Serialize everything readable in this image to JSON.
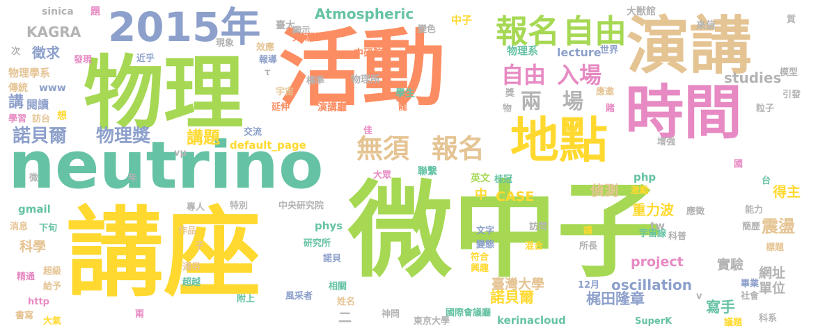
{
  "palette": {
    "green": "#a6d854",
    "orange": "#fc8d62",
    "yellow": "#ffd92f",
    "teal": "#66c2a5",
    "blue": "#8da0cb",
    "pink": "#e78ac3",
    "tan": "#e5c494",
    "gray": "#b3b3b3"
  },
  "words": [
    {
      "text": "微中子",
      "color": "green",
      "size": 150
    },
    {
      "text": "講座",
      "color": "yellow",
      "size": 130
    },
    {
      "text": "活動",
      "color": "orange",
      "size": 120
    },
    {
      "text": "物理",
      "color": "green",
      "size": 115
    },
    {
      "text": "neutrino",
      "color": "teal",
      "size": 100
    },
    {
      "text": "演講",
      "color": "tan",
      "size": 90
    },
    {
      "text": "時間",
      "color": "pink",
      "size": 85
    },
    {
      "text": "地點",
      "color": "yellow",
      "size": 70
    },
    {
      "text": "2015年",
      "color": "blue",
      "size": 60
    },
    {
      "text": "報名",
      "color": "green",
      "size": 48
    },
    {
      "text": "自由",
      "color": "green",
      "size": 48
    },
    {
      "text": "無須",
      "color": "tan",
      "size": 40
    },
    {
      "text": "報名",
      "color": "tan",
      "size": 40
    },
    {
      "text": "自由",
      "color": "pink",
      "size": 34
    },
    {
      "text": "入場",
      "color": "pink",
      "size": 34
    },
    {
      "text": "兩",
      "color": "gray",
      "size": 32
    },
    {
      "text": "場",
      "color": "gray",
      "size": 32
    },
    {
      "text": "諾貝爾",
      "color": "blue",
      "size": 30
    },
    {
      "text": "物理獎",
      "color": "blue",
      "size": 30
    },
    {
      "text": "講題",
      "color": "yellow",
      "size": 26
    },
    {
      "text": "Atmospheric",
      "color": "teal",
      "size": 22
    },
    {
      "text": "KAGRA",
      "color": "gray",
      "size": 22
    },
    {
      "text": "studies",
      "color": "gray",
      "size": 22
    },
    {
      "text": "徵求",
      "color": "blue",
      "size": 20
    },
    {
      "text": "講",
      "color": "blue",
      "size": 22
    },
    {
      "text": "閱讀",
      "color": "blue",
      "size": 16
    },
    {
      "text": "www",
      "color": "blue",
      "size": 14
    },
    {
      "text": "物理學系",
      "color": "tan",
      "size": 16
    },
    {
      "text": "傳統",
      "color": "tan",
      "size": 16
    },
    {
      "text": "學習",
      "color": "pink",
      "size": 14
    },
    {
      "text": "訪台",
      "color": "tan",
      "size": 14
    },
    {
      "text": "想",
      "color": "yellow",
      "size": 14
    },
    {
      "text": "發現",
      "color": "pink",
      "size": 14
    },
    {
      "text": "次",
      "color": "gray",
      "size": 14
    },
    {
      "text": "sinica",
      "color": "gray",
      "size": 14
    },
    {
      "text": "題",
      "color": "pink",
      "size": 14
    },
    {
      "text": "近乎",
      "color": "blue",
      "size": 14
    },
    {
      "text": "現象",
      "color": "gray",
      "size": 14
    },
    {
      "text": "效應",
      "color": "tan",
      "size": 14
    },
    {
      "text": "報導",
      "color": "blue",
      "size": 14
    },
    {
      "text": "τ",
      "color": "gray",
      "size": 14
    },
    {
      "text": "臺大",
      "color": "gray",
      "size": 14
    },
    {
      "text": "顯示",
      "color": "gray",
      "size": 14
    },
    {
      "text": "變色",
      "color": "gray",
      "size": 14
    },
    {
      "text": "中子",
      "color": "yellow",
      "size": 16
    },
    {
      "text": "物理系",
      "color": "teal",
      "size": 16
    },
    {
      "text": "lecture",
      "color": "blue",
      "size": 16
    },
    {
      "text": "世界",
      "color": "blue",
      "size": 14
    },
    {
      "text": "大獣館",
      "color": "gray",
      "size": 14
    },
    {
      "text": "來信",
      "color": "gray",
      "size": 14
    },
    {
      "text": "質",
      "color": "gray",
      "size": 14
    },
    {
      "text": "模型",
      "color": "gray",
      "size": 14
    },
    {
      "text": "引發",
      "color": "gray",
      "size": 14
    },
    {
      "text": "粒子",
      "color": "gray",
      "size": 14
    },
    {
      "text": "應邀",
      "color": "tan",
      "size": 14
    },
    {
      "text": "賭",
      "color": "pink",
      "size": 14
    },
    {
      "text": "貝爾獎",
      "color": "orange",
      "size": 14
    },
    {
      "text": "中研院",
      "color": "orange",
      "size": 14
    },
    {
      "text": "標準",
      "color": "gray",
      "size": 14
    },
    {
      "text": "物理所",
      "color": "gray",
      "size": 14
    },
    {
      "text": "學生",
      "color": "teal",
      "size": 14
    },
    {
      "text": "宇宙",
      "color": "tan",
      "size": 14
    },
    {
      "text": "龍",
      "color": "orange",
      "size": 14
    },
    {
      "text": "延伸",
      "color": "orange",
      "size": 14
    },
    {
      "text": "演講廳",
      "color": "orange",
      "size": 14
    },
    {
      "text": "獎",
      "color": "gray",
      "size": 14
    },
    {
      "text": "物",
      "color": "gray",
      "size": 14
    },
    {
      "text": "偵測",
      "color": "tan",
      "size": 20
    },
    {
      "text": "得主",
      "color": "yellow",
      "size": 20
    },
    {
      "text": "重力波",
      "color": "yellow",
      "size": 20
    },
    {
      "text": "震盪",
      "color": "tan",
      "size": 26
    },
    {
      "text": "CASE",
      "color": "yellow",
      "size": 20
    },
    {
      "text": "中",
      "color": "yellow",
      "size": 18
    },
    {
      "text": "交流",
      "color": "blue",
      "size": 14
    },
    {
      "text": "default_page",
      "color": "yellow",
      "size": 16
    },
    {
      "text": "佳",
      "color": "pink",
      "size": 14
    },
    {
      "text": "大眾",
      "color": "pink",
      "size": 14
    },
    {
      "text": "聯繫",
      "color": "teal",
      "size": 14
    },
    {
      "text": "英文",
      "color": "green",
      "size": 14
    },
    {
      "text": "桂冠",
      "color": "teal",
      "size": 14
    },
    {
      "text": "php",
      "color": "teal",
      "size": 16
    },
    {
      "text": "激勵",
      "color": "yellow",
      "size": 14
    },
    {
      "text": "增強",
      "color": "gray",
      "size": 14
    },
    {
      "text": "國",
      "color": "pink",
      "size": 14
    },
    {
      "text": "台",
      "color": "teal",
      "size": 14
    },
    {
      "text": "vµ",
      "color": "gray",
      "size": 14
    },
    {
      "text": "微",
      "color": "gray",
      "size": 14
    },
    {
      "text": "年",
      "color": "gray",
      "size": 14
    },
    {
      "text": "gmail",
      "color": "teal",
      "size": 16
    },
    {
      "text": "消息",
      "color": "tan",
      "size": 14
    },
    {
      "text": "下旬",
      "color": "teal",
      "size": 14
    },
    {
      "text": "專人",
      "color": "gray",
      "size": 14
    },
    {
      "text": "特別",
      "color": "gray",
      "size": 14
    },
    {
      "text": "中央研究院",
      "color": "gray",
      "size": 14
    },
    {
      "text": "科學",
      "color": "tan",
      "size": 20
    },
    {
      "text": "作品",
      "color": "tan",
      "size": 14
    },
    {
      "text": "子",
      "color": "tan",
      "size": 14
    },
    {
      "text": "精通",
      "color": "pink",
      "size": 14
    },
    {
      "text": "超級",
      "color": "tan",
      "size": 14
    },
    {
      "text": "給予",
      "color": "tan",
      "size": 14
    },
    {
      "text": "通俗",
      "color": "tan",
      "size": 14
    },
    {
      "text": "超越",
      "color": "teal",
      "size": 14
    },
    {
      "text": "http",
      "color": "pink",
      "size": 14
    },
    {
      "text": "書寫",
      "color": "tan",
      "size": 14
    },
    {
      "text": "大氣",
      "color": "yellow",
      "size": 14
    },
    {
      "text": "兩",
      "color": "pink",
      "size": 14
    },
    {
      "text": "phys",
      "color": "teal",
      "size": 16
    },
    {
      "text": "研究所",
      "color": "teal",
      "size": 14
    },
    {
      "text": "諾貝",
      "color": "blue",
      "size": 14
    },
    {
      "text": "附上",
      "color": "teal",
      "size": 14
    },
    {
      "text": "相關",
      "color": "teal",
      "size": 14
    },
    {
      "text": "風采者",
      "color": "blue",
      "size": 14
    },
    {
      "text": "姓名",
      "color": "tan",
      "size": 14
    },
    {
      "text": "二",
      "color": "gray",
      "size": 20
    },
    {
      "text": "國際會議廳",
      "color": "teal",
      "size": 14
    },
    {
      "text": "神岡",
      "color": "gray",
      "size": 14
    },
    {
      "text": "東京大學",
      "color": "gray",
      "size": 14
    },
    {
      "text": "符合",
      "color": "yellow",
      "size": 14
    },
    {
      "text": "興趣",
      "color": "yellow",
      "size": 14
    },
    {
      "text": "文字",
      "color": "blue",
      "size": 14
    },
    {
      "text": "變態",
      "color": "blue",
      "size": 14
    },
    {
      "text": "project",
      "color": "pink",
      "size": 20
    },
    {
      "text": "臺灣大學",
      "color": "tan",
      "size": 20
    },
    {
      "text": "梶田隆章",
      "color": "blue",
      "size": 22
    },
    {
      "text": "12月",
      "color": "blue",
      "size": 14
    },
    {
      "text": "oscillation",
      "color": "blue",
      "size": 22
    },
    {
      "text": "諾貝爾",
      "color": "yellow",
      "size": 22
    },
    {
      "text": "寫手",
      "color": "teal",
      "size": 22
    },
    {
      "text": "kerinacloud",
      "color": "teal",
      "size": 16
    },
    {
      "text": "SuperK",
      "color": "teal",
      "size": 14
    },
    {
      "text": "議題",
      "color": "yellow",
      "size": 14
    },
    {
      "text": "科系",
      "color": "gray",
      "size": 14
    },
    {
      "text": "v",
      "color": "gray",
      "size": 14
    },
    {
      "text": "tw",
      "color": "gray",
      "size": 16
    },
    {
      "text": "應徵",
      "color": "gray",
      "size": 14
    },
    {
      "text": "能力",
      "color": "gray",
      "size": 14
    },
    {
      "text": "網址",
      "color": "gray",
      "size": 20
    },
    {
      "text": "單位",
      "color": "gray",
      "size": 20
    },
    {
      "text": "實驗",
      "color": "gray",
      "size": 20
    },
    {
      "text": "簡歷",
      "color": "gray",
      "size": 14
    },
    {
      "text": "標題",
      "color": "tan",
      "size": 14
    },
    {
      "text": "畢業",
      "color": "blue",
      "size": 14
    },
    {
      "text": "社會",
      "color": "gray",
      "size": 14
    },
    {
      "text": "宇宙線",
      "color": "teal",
      "size": 14
    },
    {
      "text": "科普",
      "color": "gray",
      "size": 14
    },
    {
      "text": "訪問",
      "color": "gray",
      "size": 14
    },
    {
      "text": "講",
      "color": "yellow",
      "size": 14
    },
    {
      "text": "混合",
      "color": "yellow",
      "size": 14
    },
    {
      "text": "所長",
      "color": "gray",
      "size": 14
    }
  ]
}
